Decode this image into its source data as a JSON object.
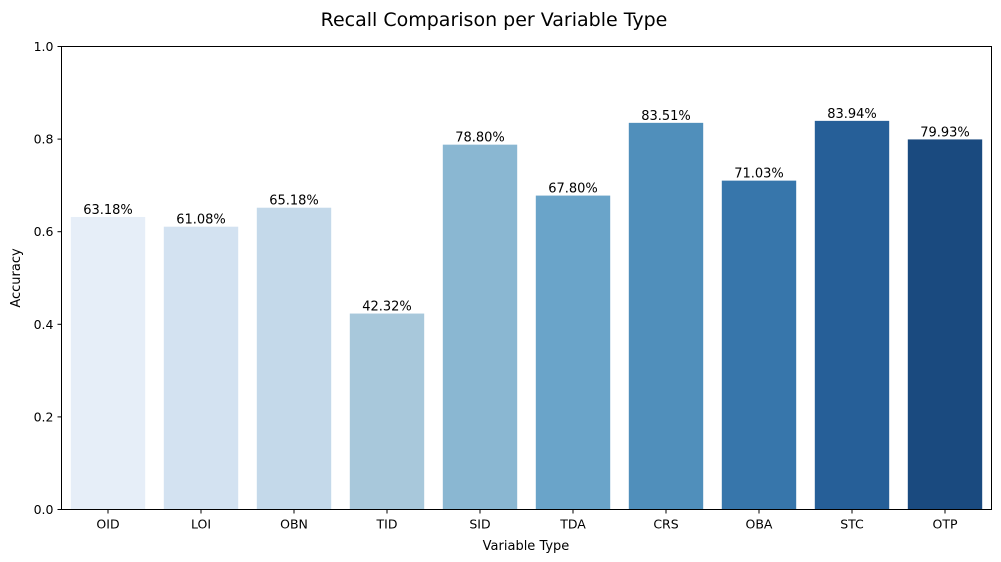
{
  "chart_data": {
    "type": "bar",
    "title": "Recall Comparison per Variable Type",
    "xlabel": "Variable Type",
    "ylabel": "Accuracy",
    "categories": [
      "OID",
      "LOI",
      "OBN",
      "TID",
      "SID",
      "TDA",
      "CRS",
      "OBA",
      "STC",
      "OTP"
    ],
    "values": [
      0.6318,
      0.6108,
      0.6518,
      0.4232,
      0.788,
      0.678,
      0.8351,
      0.7103,
      0.8394,
      0.7993
    ],
    "data_labels": [
      "63.18%",
      "61.08%",
      "65.18%",
      "42.32%",
      "78.80%",
      "67.80%",
      "83.51%",
      "71.03%",
      "83.94%",
      "79.93%"
    ],
    "ylim": [
      0,
      1
    ],
    "yticks": [
      "0.0",
      "0.2",
      "0.4",
      "0.6",
      "0.8",
      "1.0"
    ],
    "colors": [
      "#e6eef8",
      "#d3e2f1",
      "#c4d9ea",
      "#a8c8db",
      "#8ab7d2",
      "#6aa4c9",
      "#508fbb",
      "#3776ab",
      "#265f98",
      "#1a4a7f"
    ],
    "grid": false,
    "legend": "none"
  }
}
